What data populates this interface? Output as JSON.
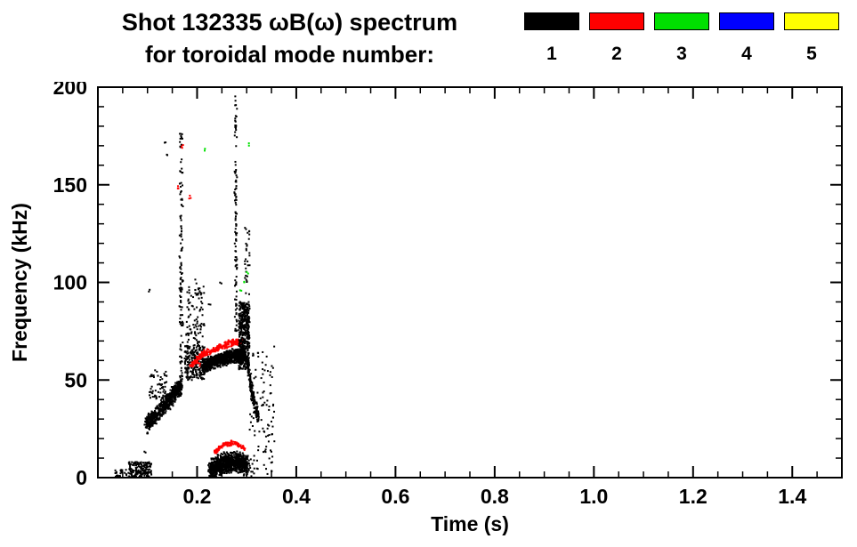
{
  "header": {
    "title_line1": "Shot 132335 ωB(ω) spectrum",
    "title_line2": "for toroidal mode number:"
  },
  "chart_data": {
    "type": "scatter",
    "title": "Shot 132335 ωB(ω) spectrum for toroidal mode number",
    "xlabel": "Time (s)",
    "ylabel": "Frequency (kHz)",
    "xlim": [
      0.0,
      1.5
    ],
    "ylim": [
      0,
      200
    ],
    "xticks": [
      0.2,
      0.4,
      0.6,
      0.8,
      1.0,
      1.2,
      1.4
    ],
    "xtick_labels": [
      "0.2",
      "0.4",
      "0.6",
      "0.8",
      "1.0",
      "1.2",
      "1.4"
    ],
    "x_minor_step": 0.05,
    "yticks": [
      0,
      50,
      100,
      150,
      200
    ],
    "ytick_labels": [
      "0",
      "50",
      "100",
      "150",
      "200"
    ],
    "y_minor_step": 10,
    "grid": false,
    "legend_position": "top-right",
    "legend": [
      {
        "label": "1",
        "color": "#000000"
      },
      {
        "label": "2",
        "color": "#ff0000"
      },
      {
        "label": "3",
        "color": "#00e000"
      },
      {
        "label": "4",
        "color": "#0000ff"
      },
      {
        "label": "5",
        "color": "#ffff00"
      }
    ],
    "clusters": [
      {
        "kind": "box",
        "color": "#000000",
        "t": [
          0.035,
          0.062
        ],
        "f": [
          0,
          4
        ],
        "n": 28,
        "s": 2
      },
      {
        "kind": "box",
        "color": "#000000",
        "t": [
          0.062,
          0.108
        ],
        "f": [
          0,
          8
        ],
        "n": 170,
        "s": 2
      },
      {
        "kind": "points",
        "color": "#000000",
        "pts": [
          [
            0.095,
            12
          ],
          [
            0.103,
            95
          ],
          [
            0.135,
            171
          ],
          [
            0.141,
            166
          ],
          [
            0.198,
            100
          ],
          [
            0.205,
            96
          ],
          [
            0.248,
            99
          ],
          [
            0.225,
            90
          ]
        ],
        "per": 2
      },
      {
        "kind": "band",
        "color": "#000000",
        "path": [
          [
            0.097,
            27
          ],
          [
            0.118,
            32
          ],
          [
            0.138,
            38
          ],
          [
            0.158,
            44
          ],
          [
            0.168,
            46
          ]
        ],
        "sf": 5,
        "st": 0.005,
        "n": 650,
        "s": 2
      },
      {
        "kind": "box",
        "color": "#000000",
        "t": [
          0.103,
          0.14
        ],
        "f": [
          40,
          55
        ],
        "n": 60,
        "s": 2
      },
      {
        "kind": "vstreak",
        "color": "#000000",
        "t": 0.168,
        "st": 0.004,
        "f": [
          46,
          178
        ],
        "n": 130,
        "s": 2
      },
      {
        "kind": "box",
        "color": "#000000",
        "t": [
          0.175,
          0.215
        ],
        "f": [
          50,
          68
        ],
        "n": 240,
        "s": 2
      },
      {
        "kind": "box",
        "color": "#000000",
        "t": [
          0.178,
          0.215
        ],
        "f": [
          68,
          98
        ],
        "n": 90,
        "s": 2
      },
      {
        "kind": "band",
        "color": "#000000",
        "path": [
          [
            0.212,
            57
          ],
          [
            0.24,
            60
          ],
          [
            0.268,
            62
          ],
          [
            0.296,
            63
          ]
        ],
        "sf": 4,
        "st": 0.004,
        "n": 950,
        "s": 2
      },
      {
        "kind": "band",
        "color": "#ff0000",
        "path": [
          [
            0.186,
            57
          ],
          [
            0.21,
            63
          ],
          [
            0.24,
            66
          ],
          [
            0.268,
            69
          ],
          [
            0.292,
            70
          ]
        ],
        "sf": 2,
        "st": 0.003,
        "n": 270,
        "s": 2
      },
      {
        "kind": "vstreak",
        "color": "#000000",
        "t": 0.278,
        "st": 0.003,
        "f": [
          75,
          196
        ],
        "n": 110,
        "s": 2
      },
      {
        "kind": "box",
        "color": "#000000",
        "t": [
          0.284,
          0.306
        ],
        "f": [
          55,
          90
        ],
        "n": 460,
        "s": 2
      },
      {
        "kind": "box",
        "color": "#000000",
        "t": [
          0.296,
          0.306
        ],
        "f": [
          90,
          130
        ],
        "n": 30,
        "s": 2
      },
      {
        "kind": "band",
        "color": "#000000",
        "path": [
          [
            0.3,
            60
          ],
          [
            0.308,
            48
          ],
          [
            0.316,
            37
          ],
          [
            0.324,
            30
          ]
        ],
        "sf": 4,
        "st": 0.003,
        "n": 170,
        "s": 2
      },
      {
        "kind": "band",
        "color": "#000000",
        "path": [
          [
            0.225,
            4
          ],
          [
            0.25,
            7
          ],
          [
            0.275,
            8
          ],
          [
            0.302,
            6
          ]
        ],
        "sf": 6,
        "st": 0.007,
        "n": 950,
        "s": 2
      },
      {
        "kind": "band",
        "color": "#ff0000",
        "path": [
          [
            0.235,
            13
          ],
          [
            0.255,
            17
          ],
          [
            0.275,
            18
          ],
          [
            0.295,
            15
          ]
        ],
        "sf": 1.5,
        "st": 0.003,
        "n": 150,
        "s": 2
      },
      {
        "kind": "box",
        "color": "#000000",
        "t": [
          0.306,
          0.356
        ],
        "f": [
          0,
          68
        ],
        "n": 110,
        "s": 2
      },
      {
        "kind": "points",
        "color": "#ff0000",
        "pts": [
          [
            0.163,
            148
          ],
          [
            0.17,
            170
          ],
          [
            0.186,
            144
          ],
          [
            0.205,
            58
          ]
        ],
        "per": 3
      },
      {
        "kind": "points",
        "color": "#00e000",
        "pts": [
          [
            0.296,
            101
          ],
          [
            0.301,
            104
          ],
          [
            0.214,
            168
          ],
          [
            0.303,
            171
          ],
          [
            0.288,
            97
          ]
        ],
        "per": 2
      }
    ]
  }
}
